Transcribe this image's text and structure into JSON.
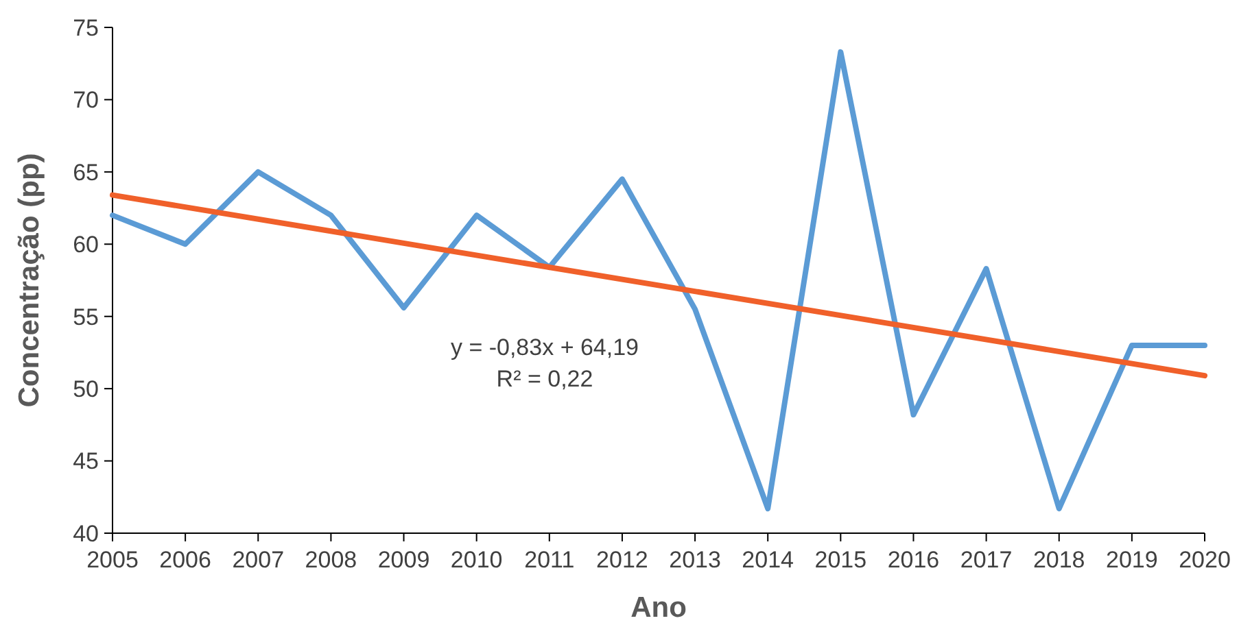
{
  "chart_data": {
    "type": "line",
    "xlabel": "Ano",
    "ylabel": "Concentração (pp)",
    "x": [
      2005,
      2006,
      2007,
      2008,
      2009,
      2010,
      2011,
      2012,
      2013,
      2014,
      2015,
      2016,
      2017,
      2018,
      2019,
      2020
    ],
    "series": [
      {
        "color": "#5b9bd5",
        "values": [
          62,
          60,
          65,
          62,
          55.6,
          62,
          58.4,
          64.5,
          55.5,
          41.7,
          73.3,
          48.2,
          58.3,
          41.7,
          53,
          53
        ]
      },
      {
        "type": "line",
        "color": "#f0602a",
        "x": [
          2005,
          2020
        ],
        "values": [
          63.4,
          50.9
        ]
      }
    ],
    "xlim": [
      2005,
      2020
    ],
    "xticks": [
      2005,
      2006,
      2007,
      2008,
      2009,
      2010,
      2011,
      2012,
      2013,
      2014,
      2015,
      2016,
      2017,
      2018,
      2019,
      2020
    ],
    "ylim": [
      40,
      75
    ],
    "yticks": [
      40,
      45,
      50,
      55,
      60,
      65,
      70,
      75
    ],
    "annotations": [
      "y = -0,83x + 64,19",
      "R² = 0,22"
    ],
    "grid": false,
    "marker": "none",
    "line_style": "solid"
  }
}
